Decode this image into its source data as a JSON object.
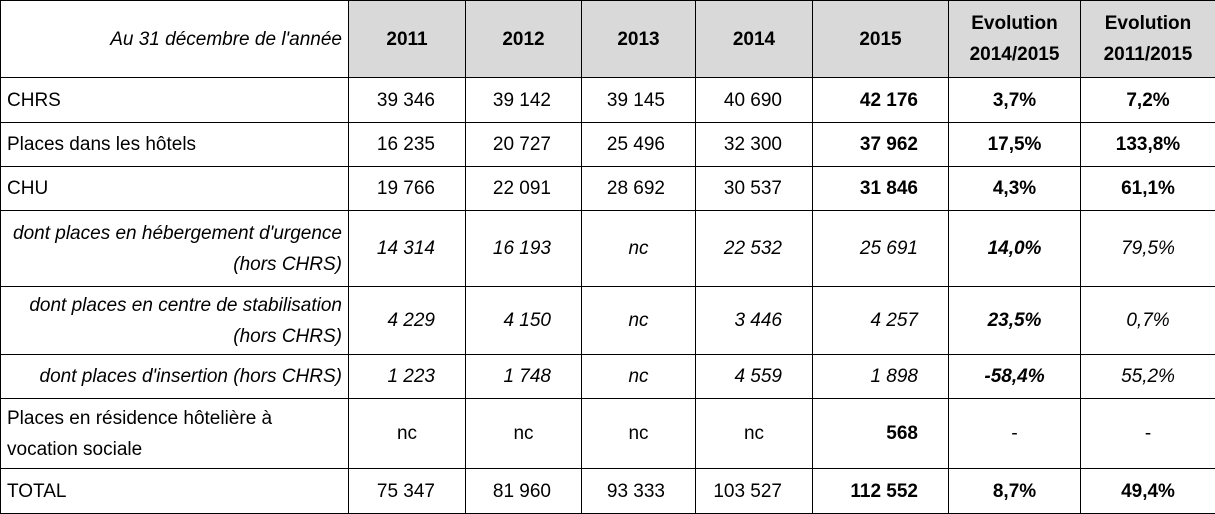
{
  "table": {
    "header": [
      "Au 31  décembre de l'année",
      "2011",
      "2012",
      "2013",
      "2014",
      "2015",
      "Evolution 2014/2015",
      "Evolution 2011/2015"
    ],
    "rows": [
      [
        "CHRS",
        "39 346",
        "39 142",
        "39 145",
        "40 690",
        "42 176",
        "3,7%",
        "7,2%"
      ],
      [
        "Places dans les hôtels",
        "16 235",
        "20 727",
        "25 496",
        "32 300",
        "37 962",
        "17,5%",
        "133,8%"
      ],
      [
        "CHU",
        "19 766",
        "22 091",
        "28 692",
        "30 537",
        "31 846",
        "4,3%",
        "61,1%"
      ],
      [
        "dont places en hébergement d'urgence (hors CHRS)",
        "14 314",
        "16 193",
        "nc",
        "22 532",
        "25 691",
        "14,0%",
        "79,5%"
      ],
      [
        "dont places en centre de stabilisation (hors CHRS)",
        "4 229",
        "4 150",
        "nc",
        "3 446",
        "4 257",
        "23,5%",
        "0,7%"
      ],
      [
        "dont places d'insertion (hors CHRS)",
        "1 223",
        "1 748",
        "nc",
        "4 559",
        "1 898",
        "-58,4%",
        "55,2%"
      ],
      [
        "Places en résidence hôtelière à vocation sociale",
        "nc",
        "nc",
        "nc",
        "nc",
        "568",
        "-",
        "-"
      ],
      [
        "TOTAL",
        "75 347",
        "81 960",
        "93 333",
        "103 527",
        "112 552",
        "8,7%",
        "49,4%"
      ]
    ]
  }
}
